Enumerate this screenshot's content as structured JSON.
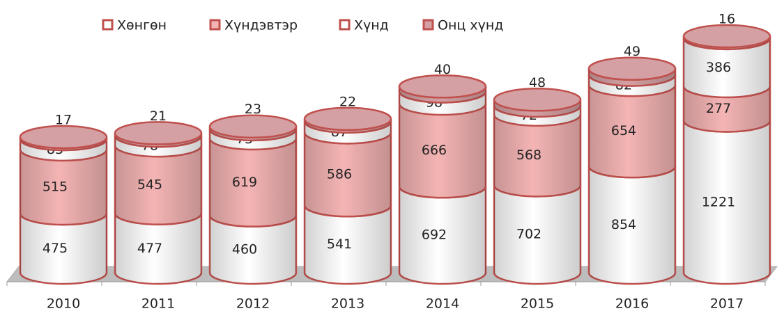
{
  "chart_data": {
    "type": "bar",
    "stacked": true,
    "categories": [
      "2010",
      "2011",
      "2012",
      "2013",
      "2014",
      "2015",
      "2016",
      "2017"
    ],
    "series": [
      {
        "name": "Хөнгөн",
        "color": "#ffffff",
        "values": [
          475,
          477,
          460,
          541,
          692,
          702,
          854,
          1221
        ]
      },
      {
        "name": "Хүндэвтэр",
        "color": "#f4b4b4",
        "values": [
          515,
          545,
          619,
          586,
          666,
          568,
          654,
          277
        ]
      },
      {
        "name": "Хүнд",
        "color": "#ffffff",
        "values": [
          83,
          78,
          73,
          87,
          98,
          72,
          82,
          386
        ]
      },
      {
        "name": "Онц хүнд",
        "color": "#d4a0a3",
        "values": [
          17,
          21,
          23,
          22,
          40,
          48,
          49,
          16
        ]
      }
    ],
    "legend": "top"
  }
}
